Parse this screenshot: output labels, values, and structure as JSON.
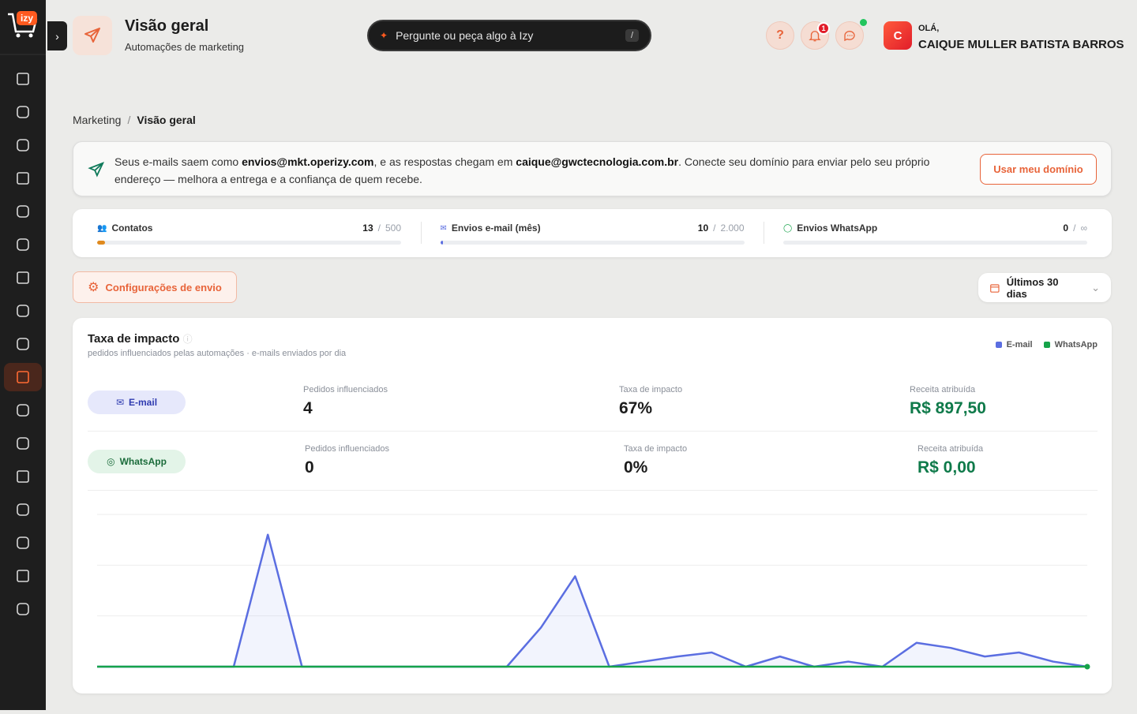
{
  "header": {
    "title": "Visão geral",
    "subtitle": "Automações de marketing",
    "search_placeholder": "Pergunte ou peça algo à Izy",
    "search_shortcut": "/",
    "help": "?",
    "notification_count": "1",
    "greeting": "OLÁ,",
    "user_name": "CAIQUE MULLER BATISTA BARROS",
    "avatar": "C"
  },
  "breadcrumb": {
    "items": [
      "Marketing",
      "Visão geral"
    ],
    "separator": "/"
  },
  "notice": {
    "parts": [
      {
        "text": "Seus e-mails saem como ",
        "bold": false
      },
      {
        "text": "envios@mkt.operizy.com",
        "bold": true
      },
      {
        "text": ", e as respostas chegam em ",
        "bold": false
      },
      {
        "text": "caique@gwctecnologia.com.br",
        "bold": true
      },
      {
        "text": ". Conecte seu domínio para enviar pelo seu próprio endereço — melhora a entrega e a confiança de quem recebe.",
        "bold": false
      }
    ],
    "button": "Usar meu domínio"
  },
  "usage": {
    "separator": "/",
    "items": [
      {
        "label": "Contatos",
        "used": 13,
        "limit": 500,
        "color": "#e08a1e"
      },
      {
        "label": "Envios e-mail (mês)",
        "used": 10,
        "limit": {
          "value": 2000,
          "label": "2.000"
        },
        "color": "#5b6ee1"
      },
      {
        "label": "Envios WhatsApp",
        "used": 0,
        "limit": "∞",
        "color": "#16a34a"
      }
    ]
  },
  "send_settings": "Configurações de envio",
  "period": "Últimos 30 dias",
  "impact": {
    "title": "Taxa de impacto",
    "subtitle": "pedidos influenciados pelas automações · e-mails enviados por dia",
    "rows": [
      {
        "channel": "E-mail",
        "stats": [
          {
            "label": "Pedidos influenciados",
            "value": "4"
          },
          {
            "label": "Taxa de impacto",
            "value": "67%"
          },
          {
            "label": "Receita atribuída",
            "value": "R$ 897,50"
          }
        ]
      },
      {
        "channel": "WhatsApp",
        "stats": [
          {
            "label": "Pedidos influenciados",
            "value": "0"
          },
          {
            "label": "Taxa de impacto",
            "value": "0%"
          },
          {
            "label": "Receita atribuída",
            "value": "R$ 0,00"
          }
        ]
      }
    ]
  },
  "chart_data": {
    "type": "line",
    "categories": [
      null,
      null,
      null,
      null,
      null,
      null,
      null,
      null,
      null,
      null,
      null,
      null,
      null,
      null,
      null,
      null,
      null,
      null,
      null,
      null,
      null,
      null,
      null,
      null,
      null,
      null,
      null,
      null,
      null,
      null
    ],
    "series": [
      {
        "name": "E-mail",
        "color": "#5b6ee1",
        "values": [
          0,
          0,
          0,
          0,
          0,
          2.6,
          0,
          0,
          0,
          0,
          0,
          0,
          0,
          0.77,
          1.78,
          0,
          0.1,
          0.2,
          0.28,
          0,
          0.2,
          0,
          0.1,
          0,
          0.47,
          0.37,
          0.2,
          0.28,
          0.1,
          0
        ]
      },
      {
        "name": "WhatsApp",
        "color": "#16a34a",
        "values": [
          0,
          0,
          0,
          0,
          0,
          0,
          0,
          0,
          0,
          0,
          0,
          0,
          0,
          0,
          0,
          0,
          0,
          0,
          0,
          0,
          0,
          0,
          0,
          0,
          0,
          0,
          0,
          0,
          0,
          0
        ]
      }
    ],
    "ylim": [
      0,
      3
    ],
    "yticks": [
      0,
      1,
      2,
      3
    ],
    "grid": true
  }
}
